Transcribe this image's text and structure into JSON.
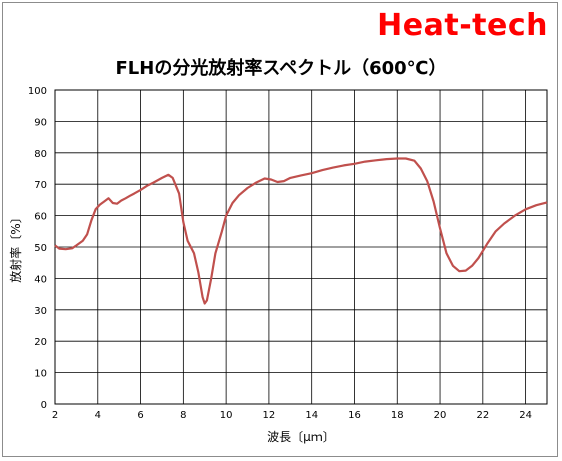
{
  "brand": "Heat-tech",
  "chart_data": {
    "type": "line",
    "title": "FLHの分光放射率スペクトル（600℃）",
    "xlabel": "波長〔μｍ〕",
    "ylabel": "放射率〔%〕",
    "xlim": [
      2,
      25
    ],
    "ylim": [
      0,
      100
    ],
    "x_ticks": [
      2,
      4,
      6,
      8,
      10,
      12,
      14,
      16,
      18,
      20,
      22,
      24
    ],
    "y_ticks": [
      0,
      10,
      20,
      30,
      40,
      50,
      60,
      70,
      80,
      90,
      100
    ],
    "grid": true,
    "line_color": "#c0504d",
    "series": [
      {
        "x": [
          2.0,
          2.2,
          2.5,
          2.8,
          3.0,
          3.3,
          3.5,
          3.7,
          3.9,
          4.1,
          4.3,
          4.5,
          4.7,
          4.9,
          5.1,
          5.3,
          5.5,
          5.7,
          6.0,
          6.3,
          6.6,
          7.0,
          7.3,
          7.5,
          7.8,
          8.0,
          8.2,
          8.5,
          8.7,
          8.9,
          9.0,
          9.1,
          9.3,
          9.5,
          9.8,
          10.0,
          10.3,
          10.6,
          11.0,
          11.4,
          11.8,
          12.1,
          12.4,
          12.7,
          13.0,
          13.5,
          14.0,
          14.5,
          15.0,
          15.5,
          16.0,
          16.5,
          17.0,
          17.5,
          18.0,
          18.4,
          18.8,
          19.1,
          19.4,
          19.7,
          20.0,
          20.3,
          20.6,
          20.9,
          21.2,
          21.5,
          21.8,
          22.2,
          22.6,
          23.0,
          23.5,
          24.0,
          24.5,
          25.0
        ],
        "y": [
          50.5,
          49.5,
          49.3,
          49.6,
          50.5,
          52.0,
          54.0,
          58.5,
          62.0,
          63.5,
          64.5,
          65.5,
          64.0,
          63.8,
          64.8,
          65.5,
          66.3,
          67.0,
          68.2,
          69.5,
          70.5,
          72.0,
          73.0,
          72.0,
          67.0,
          58.0,
          52.0,
          48.0,
          42.0,
          34.0,
          32.0,
          33.0,
          40.0,
          48.0,
          55.0,
          60.0,
          64.0,
          66.5,
          68.8,
          70.5,
          71.8,
          71.5,
          70.7,
          71.0,
          72.0,
          72.8,
          73.5,
          74.5,
          75.3,
          76.0,
          76.5,
          77.2,
          77.6,
          78.0,
          78.2,
          78.2,
          77.5,
          75.0,
          71.0,
          64.5,
          56.0,
          48.0,
          44.0,
          42.3,
          42.5,
          44.0,
          46.5,
          51.0,
          55.0,
          57.5,
          60.0,
          62.0,
          63.3,
          64.2
        ]
      }
    ]
  }
}
